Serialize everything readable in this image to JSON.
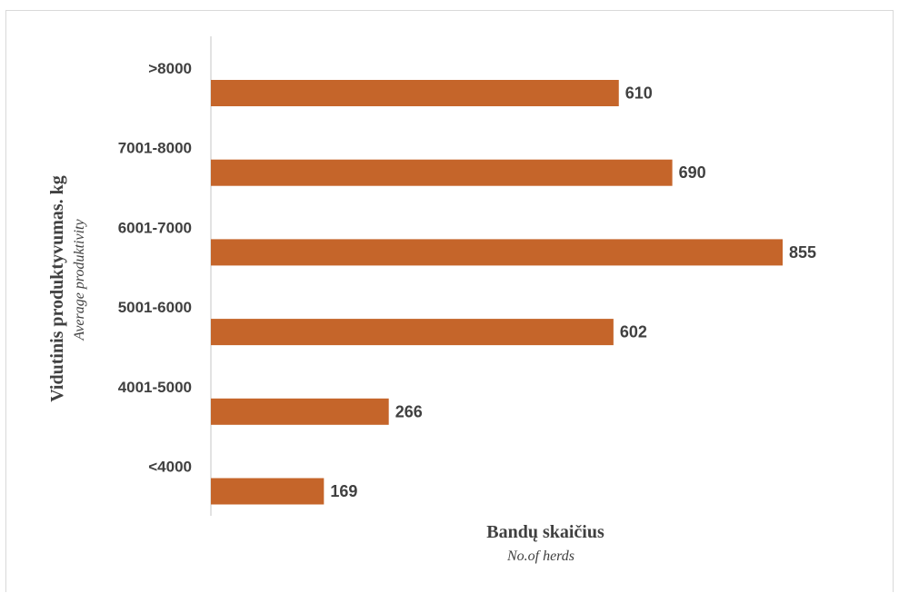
{
  "chart_data": {
    "type": "bar",
    "orientation": "horizontal",
    "categories": [
      ">8000",
      "7001-8000",
      "6001-7000",
      "5001-6000",
      "4001-5000",
      "<4000"
    ],
    "values": [
      610,
      690,
      855,
      602,
      266,
      169
    ],
    "xlabel": "Bandų skaičius",
    "xlabel_sub": "No.of herds",
    "ylabel": "Vidutinis produktyvumas. kg",
    "ylabel_sub": "Average produktivity",
    "xlim": [
      0,
      880
    ],
    "bar_color": "#c5652a",
    "data_labels": true,
    "grid": false,
    "legend": "none"
  }
}
